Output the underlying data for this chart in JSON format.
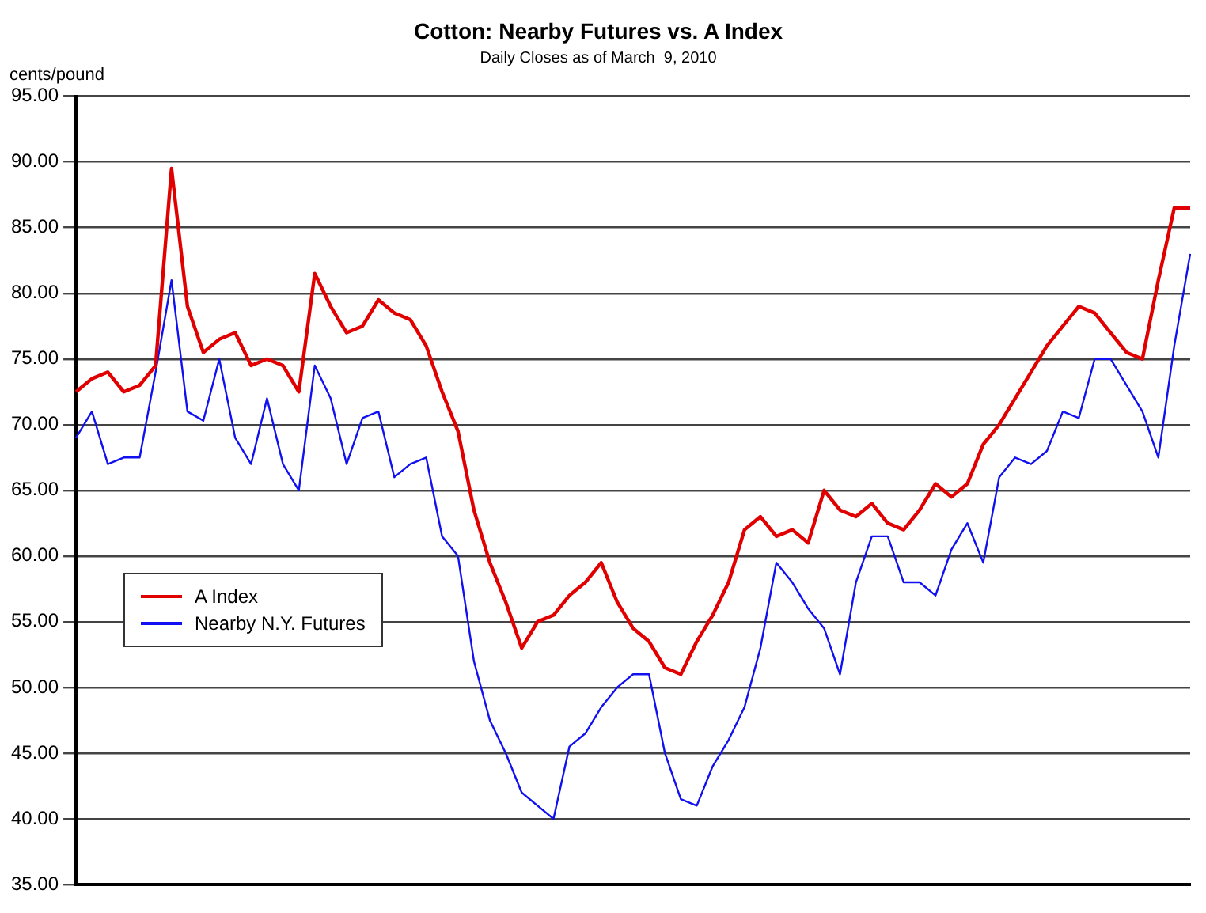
{
  "chart_data": {
    "type": "line",
    "title": "Cotton: Nearby Futures vs. A Index",
    "subtitle": "Daily Closes as of March  9, 2010",
    "ylabel": "cents/pound",
    "categories": [
      null,
      null,
      null,
      null,
      null,
      null,
      null,
      null,
      null,
      null,
      null,
      null,
      null,
      null,
      null,
      null,
      null,
      null,
      null,
      null,
      null,
      null,
      null,
      null,
      null,
      null,
      null,
      null,
      null,
      null,
      null,
      null,
      null,
      null,
      null,
      null,
      null,
      null,
      null,
      null,
      null,
      null,
      null,
      null,
      null,
      null,
      null,
      null,
      null,
      null,
      null,
      null,
      null,
      null,
      null,
      null,
      null,
      null,
      null,
      null,
      null,
      null,
      null,
      null,
      null,
      null,
      null,
      null,
      null,
      null,
      null
    ],
    "series": [
      {
        "name": "A Index",
        "color": "#e00000",
        "values": [
          72.5,
          73.5,
          74,
          72.5,
          73,
          74.5,
          89.5,
          79,
          75.5,
          76.5,
          77,
          74.5,
          75,
          74.5,
          72.5,
          81.5,
          79,
          77,
          77.5,
          79.5,
          78.5,
          78,
          76,
          72.5,
          69.5,
          63.5,
          59.5,
          56.5,
          53,
          55,
          55.5,
          57,
          58,
          59.5,
          56.5,
          54.5,
          53.5,
          51.5,
          51,
          53.5,
          55.5,
          58,
          62,
          63,
          61.5,
          62,
          61,
          65,
          63.5,
          63,
          64,
          62.5,
          62,
          63.5,
          65.5,
          64.5,
          65.5,
          68.5,
          70,
          72,
          74,
          76,
          77.5,
          79,
          78.5,
          77,
          75.5,
          75,
          81,
          86.5,
          86.5
        ]
      },
      {
        "name": "Nearby N.Y. Futures",
        "color": "#1010f0",
        "values": [
          69,
          71,
          67,
          67.5,
          67.5,
          74,
          81,
          71,
          70.3,
          75,
          69,
          67,
          72,
          67,
          65,
          74.5,
          72,
          67,
          70.5,
          71,
          66,
          67,
          67.5,
          61.5,
          60,
          52,
          47.5,
          45,
          42,
          41,
          40,
          45.5,
          46.5,
          48.5,
          50,
          51,
          51,
          45,
          41.5,
          41,
          44,
          46,
          48.5,
          53,
          59.5,
          58,
          56,
          54.5,
          51,
          58,
          61.5,
          61.5,
          58,
          58,
          57,
          60.5,
          62.5,
          59.5,
          66,
          67.5,
          67,
          68,
          71,
          70.5,
          75,
          75,
          73,
          71,
          67.5,
          76,
          83
        ]
      }
    ],
    "ylim": [
      35,
      95
    ],
    "yticks": [
      {
        "value": 35,
        "label": "35.00"
      },
      {
        "value": 40,
        "label": "40.00"
      },
      {
        "value": 45,
        "label": "45.00"
      },
      {
        "value": 50,
        "label": "50.00"
      },
      {
        "value": 55,
        "label": "55.00"
      },
      {
        "value": 60,
        "label": "60.00"
      },
      {
        "value": 65,
        "label": "65.00"
      },
      {
        "value": 70,
        "label": "70.00"
      },
      {
        "value": 75,
        "label": "75.00"
      },
      {
        "value": 80,
        "label": "80.00"
      },
      {
        "value": 85,
        "label": "85.00"
      },
      {
        "value": 90,
        "label": "90.00"
      },
      {
        "value": 95,
        "label": "95.00"
      }
    ],
    "grid": "y",
    "legend": "left",
    "tick_labels": "y",
    "marker": "none",
    "line_style": "solid"
  }
}
